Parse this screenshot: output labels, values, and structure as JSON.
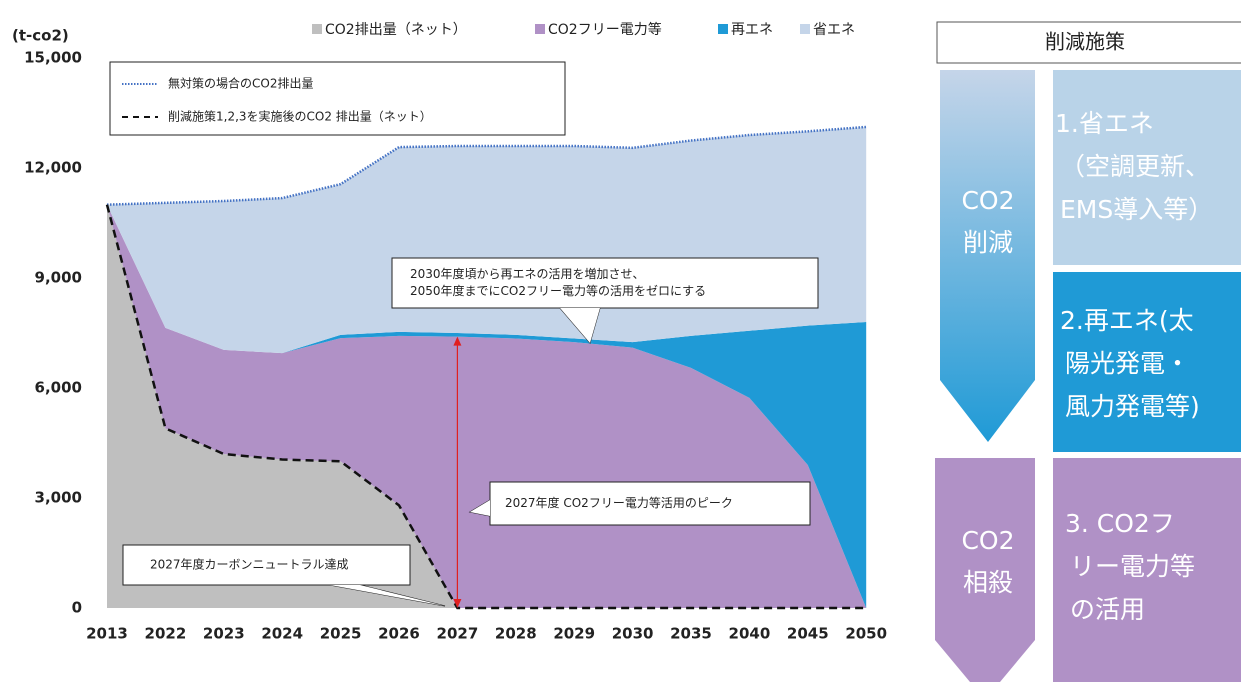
{
  "chart_data": {
    "type": "stacked_area",
    "y_label": "(t-co2)",
    "categories": [
      "2013",
      "2022",
      "2023",
      "2024",
      "2025",
      "2026",
      "2027",
      "2028",
      "2029",
      "2030",
      "2035",
      "2040",
      "2045",
      "2050"
    ],
    "ylim": [
      0,
      15000
    ],
    "yticks": [
      {
        "value": 0,
        "label": "0"
      },
      {
        "value": 3000,
        "label": "3,000"
      },
      {
        "value": 6000,
        "label": "6,000"
      },
      {
        "value": 9000,
        "label": "9,000"
      },
      {
        "value": 12000,
        "label": "12,000"
      },
      {
        "value": 15000,
        "label": "15,000"
      }
    ],
    "series": [
      {
        "name": "CO2排出量（ネット）",
        "color": "#bfbfbf",
        "values": [
          11000,
          4900,
          4200,
          4050,
          4000,
          2800,
          0,
          0,
          0,
          0,
          0,
          0,
          0,
          0
        ]
      },
      {
        "name": "CO2フリー電力等",
        "color": "#b091c6",
        "values": [
          0,
          2740,
          2840,
          2900,
          3360,
          4620,
          7400,
          7350,
          7250,
          7100,
          6550,
          5730,
          3900,
          0
        ]
      },
      {
        "name": "再エネ",
        "color": "#1f9ad6",
        "values": [
          0,
          0,
          0,
          0,
          90,
          110,
          100,
          100,
          100,
          150,
          870,
          1830,
          3800,
          7800
        ]
      },
      {
        "name": "省エネ",
        "color": "#c5d5e9",
        "values": [
          0,
          3410,
          4060,
          4230,
          4110,
          5040,
          5100,
          5150,
          5250,
          5300,
          5330,
          5340,
          5300,
          5320
        ]
      }
    ],
    "lines": [
      {
        "name": "無対策の場合のCO2排出量",
        "style": "dotted",
        "color": "#4472c4",
        "values": [
          11000,
          11050,
          11100,
          11180,
          11560,
          12570,
          12600,
          12600,
          12600,
          12550,
          12750,
          12900,
          13000,
          13120
        ]
      },
      {
        "name": "削減施策1,2,3を実施後のCO2 排出量（ネット）",
        "style": "dashed",
        "color": "#111",
        "series": 0
      }
    ],
    "annotations": [
      {
        "lines": [
          "2030年度頃から再エネの活用を増加させ、",
          "2050年度までにCO2フリー電力等の活用をゼロにする"
        ]
      },
      {
        "lines": [
          "2027年度 CO2フリー電力等活用のピーク"
        ]
      },
      {
        "lines": [
          "2027年度カーボンニュートラル達成"
        ]
      }
    ]
  },
  "panel": {
    "title": "削減施策",
    "arrows": [
      {
        "lines": [
          "CO2",
          "削減"
        ]
      },
      {
        "lines": [
          "CO2",
          "相殺"
        ]
      }
    ],
    "boxes": [
      {
        "lines": [
          "1.省エネ",
          "（空調更新、",
          "EMS導入等）"
        ]
      },
      {
        "lines": [
          "2.再エネ(太",
          "陽光発電・",
          "風力発電等)"
        ]
      },
      {
        "lines": [
          "3. CO2フ",
          "リー電力等",
          "の活用"
        ]
      }
    ]
  }
}
